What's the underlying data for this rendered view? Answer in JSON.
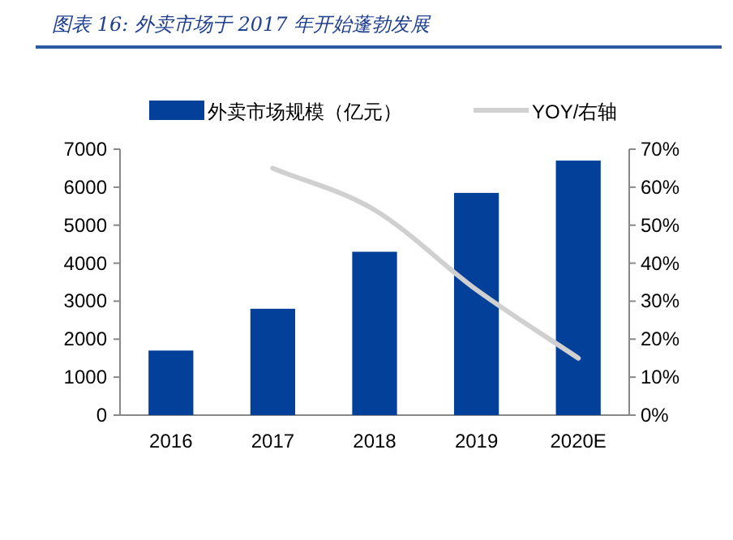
{
  "chart_data": {
    "type": "bar",
    "title": "图表 16:  外卖市场于 2017 年开始蓬勃发展",
    "categories": [
      "2016",
      "2017",
      "2018",
      "2019",
      "2020E"
    ],
    "series": [
      {
        "name": "外卖市场规模（亿元）",
        "color": "#034099",
        "values": [
          1700,
          2800,
          4300,
          5850,
          6700
        ]
      },
      {
        "name": "YOY/右轴",
        "type": "line",
        "axis": "y2",
        "color": "#d0d0d0",
        "values": [
          null,
          65,
          54,
          33,
          15
        ]
      }
    ],
    "ylim": [
      0,
      7000
    ],
    "yticks": [
      0,
      1000,
      2000,
      3000,
      4000,
      5000,
      6000,
      7000
    ],
    "y2lim": [
      0,
      70
    ],
    "y2ticks": [
      {
        "value": 0,
        "label": "0%"
      },
      {
        "value": 10,
        "label": "10%"
      },
      {
        "value": 20,
        "label": "20%"
      },
      {
        "value": 30,
        "label": "30%"
      },
      {
        "value": 40,
        "label": "40%"
      },
      {
        "value": 50,
        "label": "50%"
      },
      {
        "value": 60,
        "label": "60%"
      },
      {
        "value": 70,
        "label": "70%"
      }
    ],
    "legend": "top",
    "grid": false
  }
}
